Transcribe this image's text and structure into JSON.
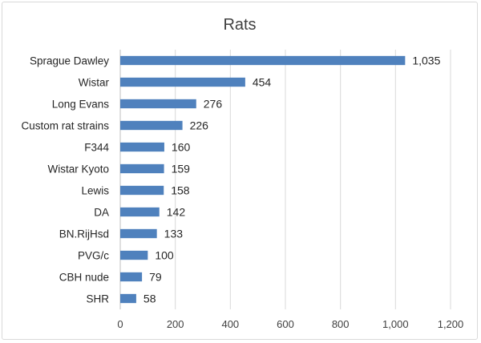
{
  "chart_data": {
    "type": "bar",
    "orientation": "horizontal",
    "title": "Rats",
    "xlabel": "",
    "ylabel": "",
    "categories": [
      "Sprague Dawley",
      "Wistar",
      "Long Evans",
      "Custom rat strains",
      "F344",
      "Wistar Kyoto",
      "Lewis",
      "DA",
      "BN.RijHsd",
      "PVG/c",
      "CBH nude",
      "SHR"
    ],
    "values": [
      1035,
      454,
      276,
      226,
      160,
      159,
      158,
      142,
      133,
      100,
      79,
      58
    ],
    "data_labels": [
      "1,035",
      "454",
      "276",
      "226",
      "160",
      "159",
      "158",
      "142",
      "133",
      "100",
      "79",
      "58"
    ],
    "xlim": [
      0,
      1200
    ],
    "xticks": [
      0,
      200,
      400,
      600,
      800,
      1000,
      1200
    ],
    "xtick_labels": [
      "0",
      "200",
      "400",
      "600",
      "800",
      "1,000",
      "1,200"
    ],
    "grid": "vertical",
    "legend": "none",
    "bar_color": "#4f81bd"
  }
}
